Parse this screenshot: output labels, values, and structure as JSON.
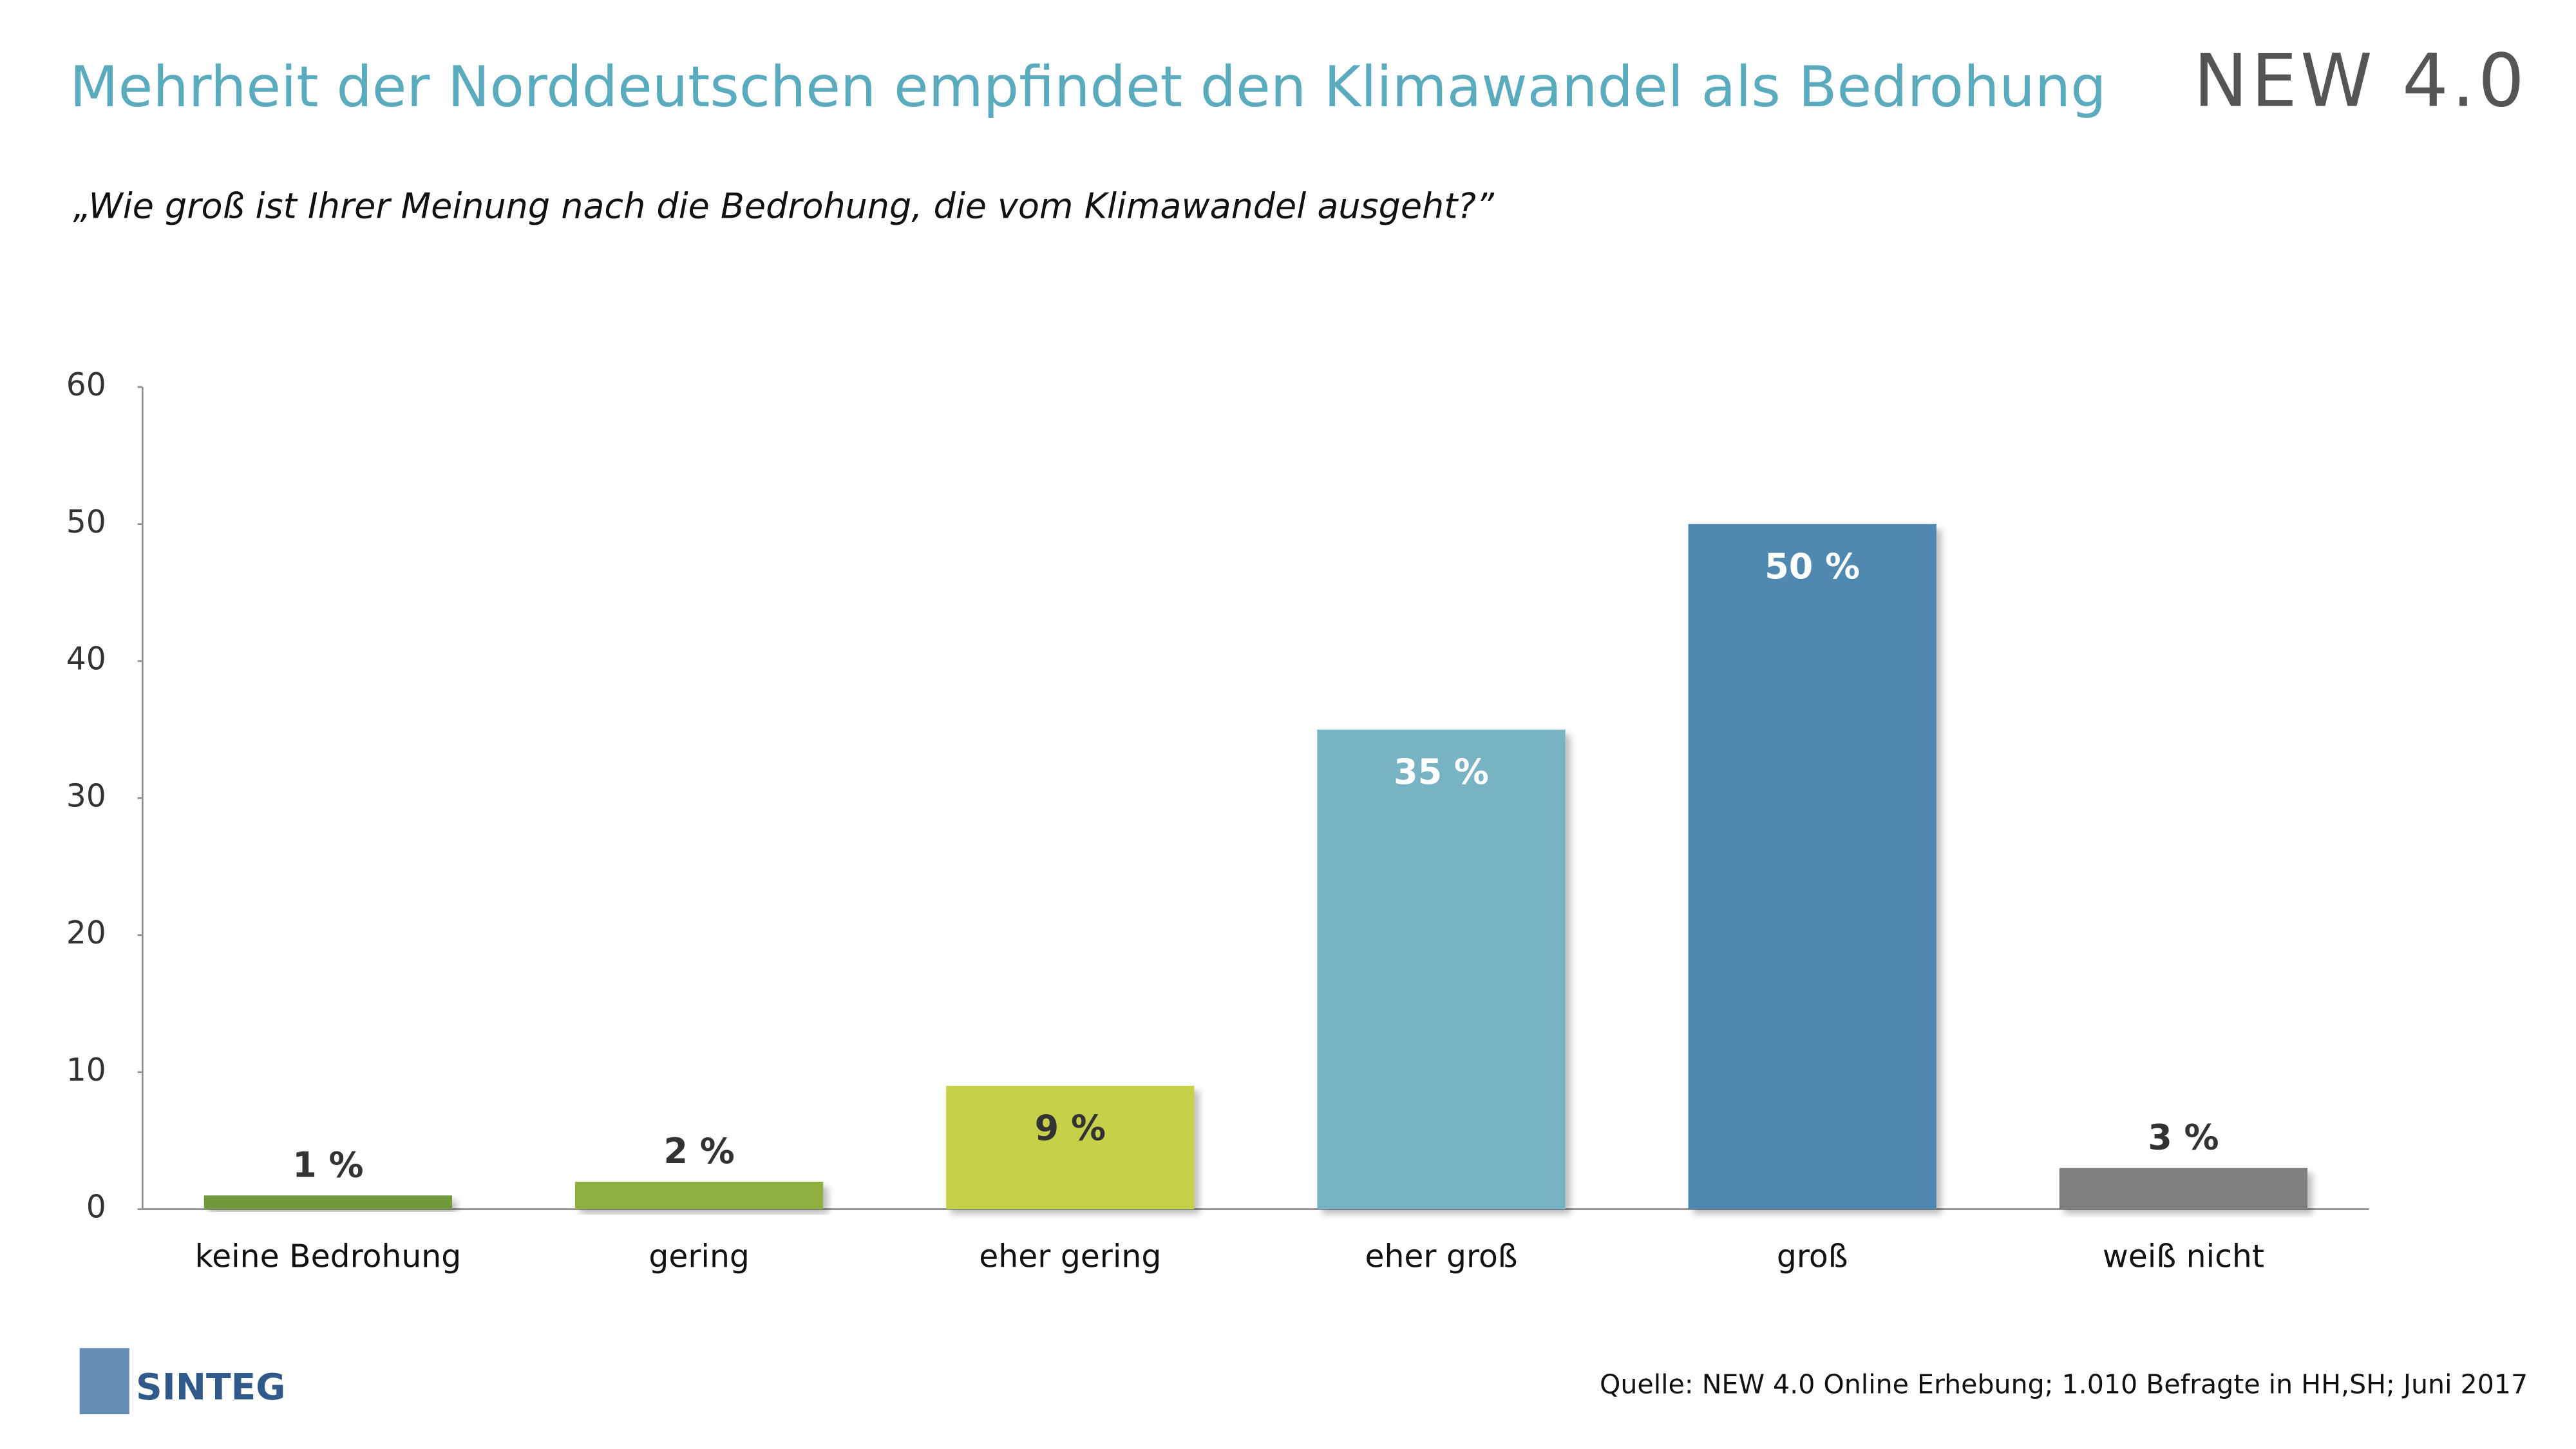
{
  "chart_data": {
    "type": "bar",
    "title": "Mehrheit der Norddeutschen empfindet den Klimawandel als Bedrohung",
    "subtitle": "„Wie groß ist Ihrer Meinung nach die Bedrohung, die vom Klimawandel ausgeht?”",
    "categories": [
      "keine Bedrohung",
      "gering",
      "eher gering",
      "eher groß",
      "groß",
      "weiß nicht"
    ],
    "values": [
      1,
      2,
      9,
      35,
      50,
      3
    ],
    "value_labels": [
      "1 %",
      "2 %",
      "9 %",
      "35 %",
      "50 %",
      "3 %"
    ],
    "colors": [
      "#6f9a3c",
      "#8fb040",
      "#c5d14a",
      "#78b3c4",
      "#5088b0",
      "#7f7f7f"
    ],
    "ylim": [
      0,
      60
    ],
    "yticks": [
      0,
      10,
      20,
      30,
      40,
      50,
      60
    ],
    "grid": false,
    "source": "Quelle: NEW 4.0 Online Erhebung; 1.010 Befragte in HH,SH; Juni 2017",
    "logo": "NEW 4.0",
    "logo_bottom": "SINTEG"
  }
}
